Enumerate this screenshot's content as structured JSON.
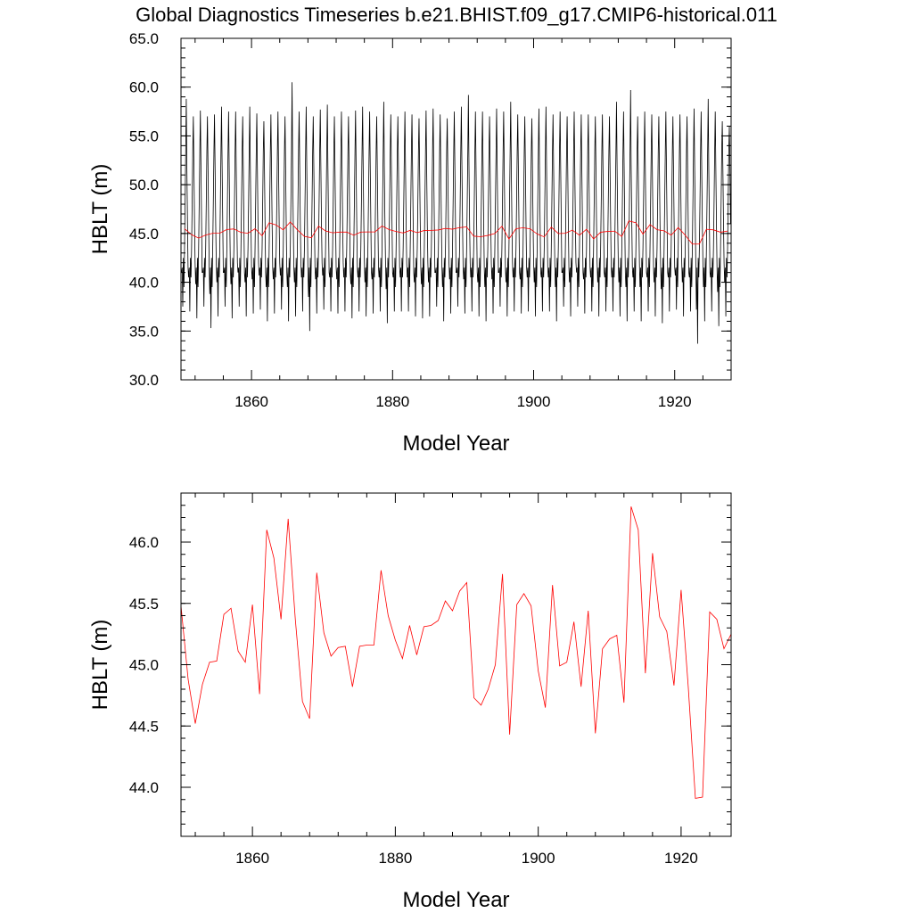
{
  "figure_title": "Global Diagnostics Timeseries b.e21.BHIST.f09_g17.CMIP6-historical.011",
  "chart_data": [
    {
      "type": "line",
      "title": "",
      "xlabel": "Model Year",
      "ylabel": "HBLT (m)",
      "xlim": [
        1850,
        1928
      ],
      "ylim": [
        30.0,
        65.0
      ],
      "x_ticks": [
        1860,
        1880,
        1900,
        1920
      ],
      "x_tick_labels": [
        "1860",
        "1880",
        "1900",
        "1920"
      ],
      "y_ticks": [
        30,
        35,
        40,
        45,
        50,
        55,
        60,
        65
      ],
      "y_tick_labels": [
        "30.0",
        "35.0",
        "40.0",
        "45.0",
        "50.0",
        "55.0",
        "60.0",
        "65.0"
      ],
      "grid": false,
      "series": [
        {
          "color": "#000000",
          "frequency": "monthly",
          "start_year": 1850,
          "annual_peaks": [
            58.8,
            57.0,
            57.6,
            57.0,
            57.2,
            58.0,
            57.5,
            57.5,
            57.0,
            58.0,
            57.3,
            56.5,
            57.2,
            57.5,
            57.0,
            60.5,
            57.5,
            58.0,
            57.0,
            57.7,
            58.2,
            57.0,
            57.5,
            57.0,
            57.6,
            58.0,
            57.5,
            57.0,
            58.5,
            57.2,
            57.0,
            57.5,
            57.2,
            56.8,
            57.6,
            57.8,
            57.2,
            56.8,
            57.5,
            58.0,
            59.2,
            57.5,
            57.5,
            57.0,
            57.8,
            57.5,
            58.5,
            57.2,
            57.0,
            56.8,
            57.8,
            58.0,
            57.2,
            57.5,
            57.0,
            57.5,
            57.2,
            57.2,
            57.0,
            57.2,
            57.0,
            58.5,
            57.5,
            59.7,
            57.0,
            57.5,
            57.2,
            57.0,
            57.5,
            57.0,
            57.2,
            57.0,
            57.8,
            57.5,
            58.8,
            57.5,
            56.5,
            56.0
          ],
          "annual_troughs": [
            37.5,
            37.0,
            36.3,
            37.5,
            35.3,
            36.5,
            37.5,
            36.3,
            37.5,
            36.5,
            36.8,
            37.2,
            36.0,
            36.8,
            37.2,
            36.0,
            36.5,
            37.0,
            35.0,
            36.8,
            37.2,
            37.0,
            36.8,
            37.0,
            36.3,
            37.0,
            36.5,
            36.8,
            37.0,
            35.8,
            37.0,
            37.0,
            37.0,
            36.5,
            36.3,
            36.5,
            37.5,
            36.0,
            36.8,
            37.5,
            36.8,
            37.0,
            36.5,
            36.0,
            36.8,
            37.5,
            36.5,
            37.0,
            36.8,
            37.0,
            36.5,
            37.0,
            37.0,
            36.0,
            37.5,
            36.5,
            37.5,
            36.8,
            37.0,
            36.5,
            37.0,
            37.0,
            36.5,
            36.0,
            37.0,
            36.0,
            37.0,
            36.5,
            35.8,
            37.0,
            37.2,
            36.5,
            37.0,
            33.7,
            36.0,
            37.0,
            35.5,
            36.5
          ]
        },
        {
          "color": "#ff0000",
          "frequency": "annual",
          "x": [
            1850,
            1851,
            1852,
            1853,
            1854,
            1855,
            1856,
            1857,
            1858,
            1859,
            1860,
            1861,
            1862,
            1863,
            1864,
            1865,
            1866,
            1867,
            1868,
            1869,
            1870,
            1871,
            1872,
            1873,
            1874,
            1875,
            1876,
            1877,
            1878,
            1879,
            1880,
            1881,
            1882,
            1883,
            1884,
            1885,
            1886,
            1887,
            1888,
            1889,
            1890,
            1891,
            1892,
            1893,
            1894,
            1895,
            1896,
            1897,
            1898,
            1899,
            1900,
            1901,
            1902,
            1903,
            1904,
            1905,
            1906,
            1907,
            1908,
            1909,
            1910,
            1911,
            1912,
            1913,
            1914,
            1915,
            1916,
            1917,
            1918,
            1919,
            1920,
            1921,
            1922,
            1923,
            1924,
            1925,
            1926,
            1927
          ],
          "y": [
            45.48,
            44.88,
            44.52,
            44.84,
            45.02,
            45.03,
            45.41,
            45.46,
            45.11,
            45.02,
            45.49,
            44.76,
            46.1,
            45.87,
            45.37,
            46.19,
            45.37,
            44.7,
            44.56,
            45.75,
            45.26,
            45.07,
            45.14,
            45.15,
            44.82,
            45.15,
            45.16,
            45.16,
            45.77,
            45.4,
            45.2,
            45.05,
            45.32,
            45.08,
            45.31,
            45.32,
            45.36,
            45.52,
            45.44,
            45.6,
            45.67,
            44.73,
            44.67,
            44.8,
            45.0,
            45.74,
            44.43,
            45.49,
            45.58,
            45.48,
            44.95,
            44.65,
            45.65,
            44.99,
            45.02,
            45.35,
            44.82,
            45.44,
            44.44,
            45.13,
            45.21,
            45.24,
            44.69,
            46.29,
            46.1,
            44.93,
            45.91,
            45.39,
            45.27,
            44.83,
            45.61,
            44.82,
            43.91,
            43.92,
            45.43,
            45.37,
            45.13,
            45.25
          ]
        }
      ]
    },
    {
      "type": "line",
      "title": "",
      "xlabel": "Model Year",
      "ylabel": "HBLT (m)",
      "xlim": [
        1850,
        1927
      ],
      "ylim": [
        43.6,
        46.4
      ],
      "x_ticks": [
        1860,
        1880,
        1900,
        1920
      ],
      "x_tick_labels": [
        "1860",
        "1880",
        "1900",
        "1920"
      ],
      "y_ticks": [
        44.0,
        44.5,
        45.0,
        45.5,
        46.0
      ],
      "y_tick_labels": [
        "44.0",
        "44.5",
        "45.0",
        "45.5",
        "46.0"
      ],
      "grid": false,
      "series": [
        {
          "color": "#ff0000",
          "frequency": "annual",
          "x": [
            1850,
            1851,
            1852,
            1853,
            1854,
            1855,
            1856,
            1857,
            1858,
            1859,
            1860,
            1861,
            1862,
            1863,
            1864,
            1865,
            1866,
            1867,
            1868,
            1869,
            1870,
            1871,
            1872,
            1873,
            1874,
            1875,
            1876,
            1877,
            1878,
            1879,
            1880,
            1881,
            1882,
            1883,
            1884,
            1885,
            1886,
            1887,
            1888,
            1889,
            1890,
            1891,
            1892,
            1893,
            1894,
            1895,
            1896,
            1897,
            1898,
            1899,
            1900,
            1901,
            1902,
            1903,
            1904,
            1905,
            1906,
            1907,
            1908,
            1909,
            1910,
            1911,
            1912,
            1913,
            1914,
            1915,
            1916,
            1917,
            1918,
            1919,
            1920,
            1921,
            1922,
            1923,
            1924,
            1925,
            1926,
            1927
          ],
          "y": [
            45.48,
            44.88,
            44.52,
            44.84,
            45.02,
            45.03,
            45.41,
            45.46,
            45.11,
            45.02,
            45.49,
            44.76,
            46.1,
            45.87,
            45.37,
            46.19,
            45.37,
            44.7,
            44.56,
            45.75,
            45.26,
            45.07,
            45.14,
            45.15,
            44.82,
            45.15,
            45.16,
            45.16,
            45.77,
            45.4,
            45.2,
            45.05,
            45.32,
            45.08,
            45.31,
            45.32,
            45.36,
            45.52,
            45.44,
            45.6,
            45.67,
            44.73,
            44.67,
            44.8,
            45.0,
            45.74,
            44.43,
            45.49,
            45.58,
            45.48,
            44.95,
            44.65,
            45.65,
            44.99,
            45.02,
            45.35,
            44.82,
            45.44,
            44.44,
            45.13,
            45.21,
            45.24,
            44.69,
            46.29,
            46.1,
            44.93,
            45.91,
            45.39,
            45.27,
            44.83,
            45.61,
            44.82,
            43.91,
            43.92,
            45.43,
            45.37,
            45.13,
            45.25
          ]
        }
      ]
    }
  ]
}
